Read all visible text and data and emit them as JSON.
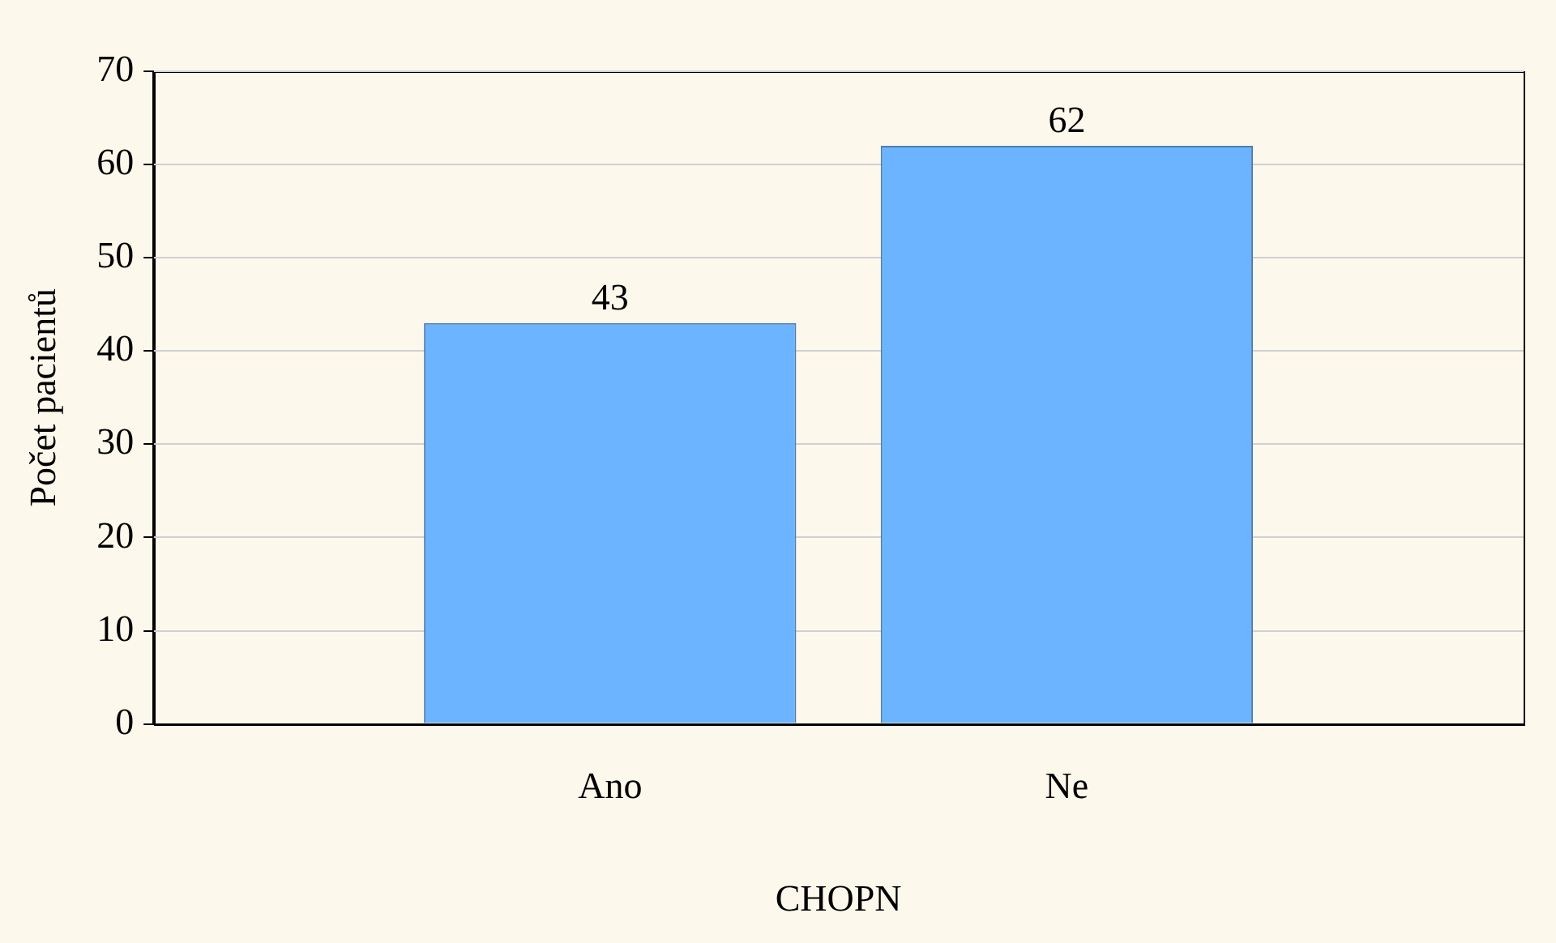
{
  "chart_data": {
    "type": "bar",
    "xlabel": "CHOPN",
    "ylabel": "Počet pacientů",
    "categories": [
      "Ano",
      "Ne"
    ],
    "values": [
      43,
      62
    ],
    "color": "#6cb4ff",
    "ylim": [
      0,
      70
    ],
    "yticks": [
      0,
      10,
      20,
      30,
      40,
      50,
      60,
      70
    ],
    "grid": "y",
    "data_labels": true
  }
}
